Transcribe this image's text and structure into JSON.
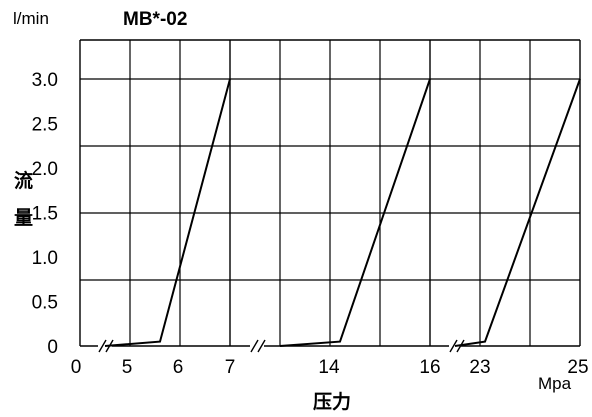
{
  "chart_data": {
    "type": "line",
    "title": "MB*-02",
    "y_unit": "l/min",
    "ylabel": "流量",
    "xlabel": "压力",
    "x_unit": "Mpa",
    "ylim": [
      0,
      3.0
    ],
    "y_ticks": [
      "0",
      "0.5",
      "1.0",
      "1.5",
      "2.0",
      "2.5",
      "3.0"
    ],
    "x_tick_labels": [
      "0",
      "5",
      "6",
      "7",
      "14",
      "16",
      "23",
      "25"
    ],
    "grid": true,
    "x_axis_breaks": true,
    "series": [
      {
        "x": [
          4.5,
          5.6,
          7.0
        ],
        "y": [
          0,
          0.05,
          3.0
        ]
      },
      {
        "x": [
          13.0,
          14.2,
          16.0
        ],
        "y": [
          0,
          0.05,
          3.0
        ]
      },
      {
        "x": [
          22.5,
          23.1,
          25.0
        ],
        "y": [
          0,
          0.05,
          3.0
        ]
      }
    ]
  }
}
